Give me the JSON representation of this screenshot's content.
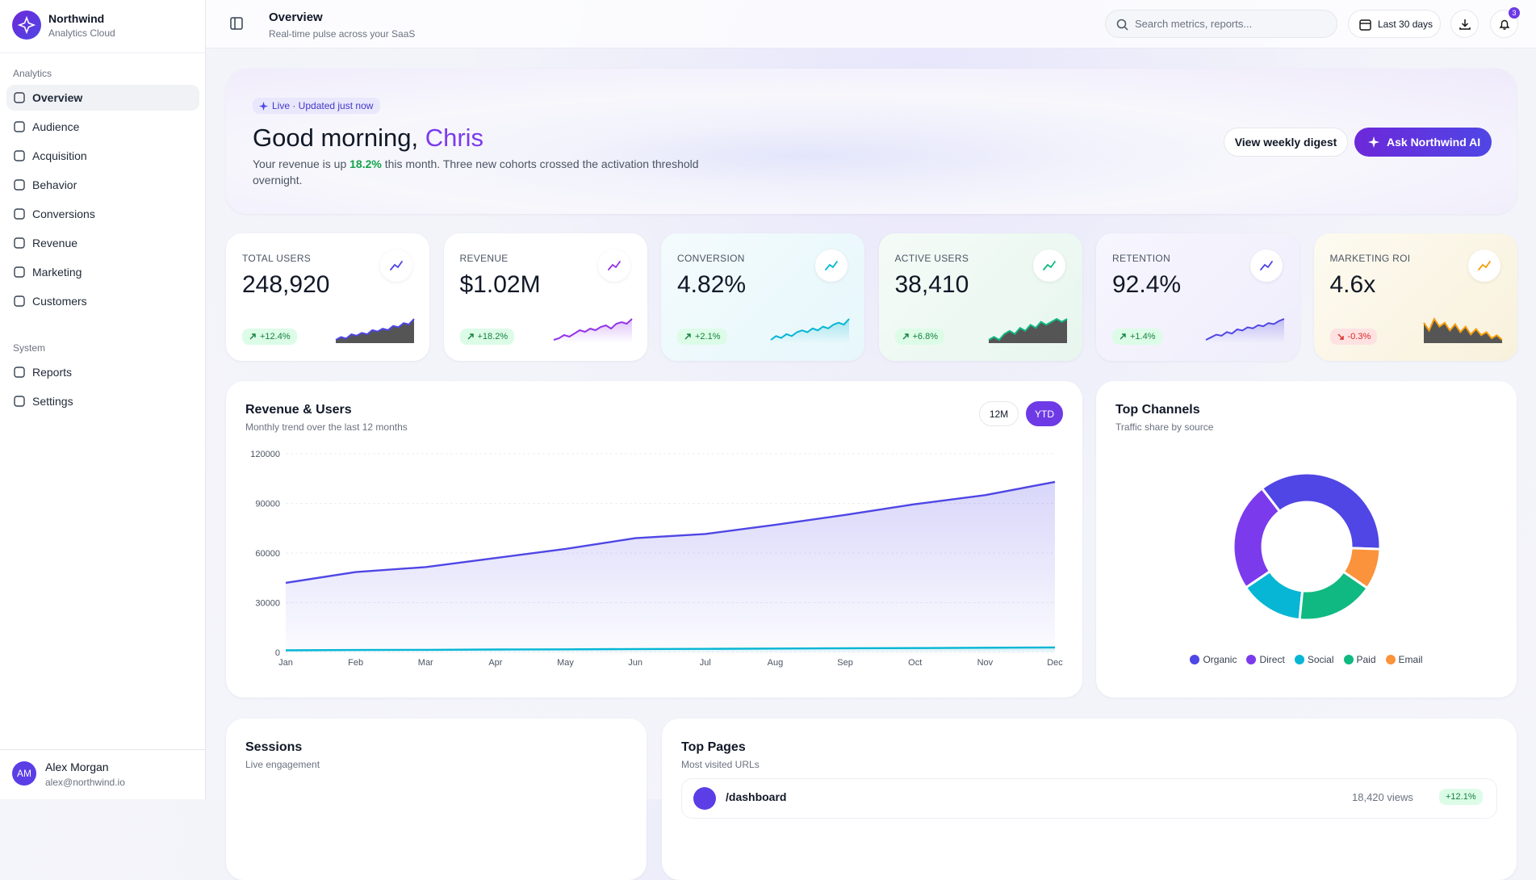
{
  "sidebar": {
    "brand": {
      "name": "Northwind",
      "subtitle": "Analytics Cloud"
    },
    "sections": [
      {
        "title": "Analytics",
        "items": [
          "Overview",
          "Audience",
          "Acquisition",
          "Behavior",
          "Conversions",
          "Revenue",
          "Marketing",
          "Customers"
        ]
      },
      {
        "title": "System",
        "items": [
          "Reports",
          "Settings"
        ]
      }
    ],
    "user": {
      "initials": "AM",
      "name": "Alex Morgan",
      "email": "alex@northwind.io"
    }
  },
  "header": {
    "title": "Overview",
    "subtitle": "Real-time pulse across your SaaS",
    "search_placeholder": "Search metrics, reports...",
    "date_range": "Last 30 days",
    "notification_count": 3
  },
  "hero": {
    "badge": "Live · Updated just now",
    "greeting": "Good morning,",
    "name": "Chris",
    "text_before": "Your revenue is up",
    "highlight": "18.2%",
    "text_after": "this month. Three new cohorts crossed the activation threshold overnight.",
    "buttons": [
      "View weekly digest",
      "Ask Northwind AI"
    ]
  },
  "kpis": [
    {
      "label": "TOTAL USERS",
      "value": "248,920",
      "delta": "+12.4%",
      "color": "#4f46e5",
      "fill": "#555555",
      "trend": [
        10,
        12,
        11,
        14,
        13,
        15,
        14,
        17,
        16,
        18,
        17,
        20,
        19,
        22,
        21,
        25
      ]
    },
    {
      "label": "REVENUE",
      "value": "$1.02M",
      "delta": "+18.2%",
      "color": "#9333ea",
      "trend": [
        8,
        9,
        11,
        10,
        12,
        14,
        13,
        15,
        14,
        16,
        17,
        15,
        18,
        19,
        18,
        21
      ]
    },
    {
      "label": "CONVERSION",
      "value": "4.82%",
      "delta": "+2.1%",
      "color": "#06b6d4",
      "trend": [
        6,
        8,
        7,
        9,
        8,
        10,
        11,
        10,
        12,
        11,
        13,
        12,
        14,
        15,
        14,
        17
      ]
    },
    {
      "label": "ACTIVE USERS",
      "value": "38,410",
      "delta": "+6.8%",
      "color": "#10b981",
      "fill": "#555555",
      "trend": [
        12,
        13,
        12,
        14,
        15,
        14,
        16,
        15,
        17,
        16,
        18,
        17,
        18,
        19,
        18,
        19
      ]
    },
    {
      "label": "RETENTION",
      "value": "92.4%",
      "delta": "+1.4%",
      "color": "#4f46e5",
      "trend": [
        10,
        10.5,
        11,
        10.8,
        11.5,
        11.2,
        12,
        11.8,
        12.4,
        12.2,
        12.8,
        12.6,
        13.2,
        13,
        13.6,
        14
      ]
    },
    {
      "label": "MARKETING ROI",
      "value": "4.6x",
      "delta": "-0.3%",
      "color": "#f59e0b",
      "fill": "#555555",
      "trend": [
        19,
        18,
        19.5,
        18.5,
        19,
        18,
        18.8,
        17.8,
        18.5,
        17.5,
        18.2,
        17.4,
        17.8,
        17,
        17.4,
        16.8
      ]
    }
  ],
  "revenue_chart": {
    "type": "line",
    "title": "Revenue & Users",
    "subtitle": "Monthly trend over the last 12 months",
    "toggles": [
      "12M",
      "YTD"
    ],
    "categories": [
      "Jan",
      "Feb",
      "Mar",
      "Apr",
      "May",
      "Jun",
      "Jul",
      "Aug",
      "Sep",
      "Oct",
      "Nov",
      "Dec"
    ],
    "series": [
      {
        "color": "#4f46e5",
        "values": [
          42000,
          48500,
          51500,
          57000,
          62500,
          69000,
          71500,
          77000,
          83000,
          89500,
          95000,
          103000
        ]
      },
      {
        "color": "#06b6d4",
        "values": [
          1200,
          1400,
          1500,
          1700,
          1800,
          2000,
          2100,
          2300,
          2500,
          2600,
          2800,
          3000
        ]
      }
    ],
    "ylim": [
      0,
      120000
    ],
    "yticks": [
      0,
      30000,
      60000,
      90000,
      120000
    ],
    "grid": true
  },
  "channels_chart": {
    "type": "pie",
    "title": "Top Channels",
    "subtitle": "Traffic share by source",
    "categories": [
      "Organic",
      "Direct",
      "Social",
      "Paid",
      "Email"
    ],
    "values": [
      36,
      24,
      14,
      17,
      9
    ],
    "colors": [
      "#4f46e5",
      "#7c3aed",
      "#06b6d4",
      "#10b981",
      "#fb923c"
    ]
  },
  "sessions": {
    "title": "Sessions",
    "subtitle": "Live engagement"
  },
  "top_pages": {
    "title": "Top Pages",
    "subtitle": "Most visited URLs",
    "rows": [
      {
        "path": "/dashboard",
        "views": "18,420 views",
        "change": "+12.1%"
      }
    ]
  }
}
